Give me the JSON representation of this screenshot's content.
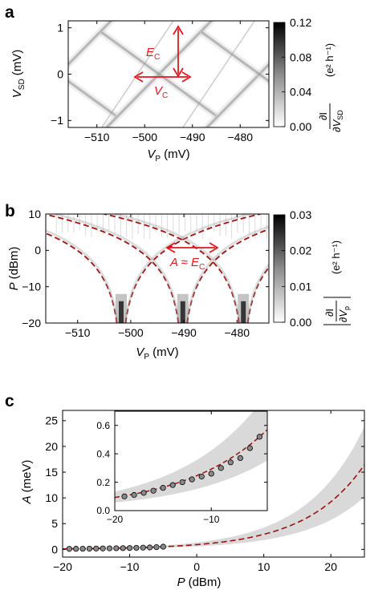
{
  "chart_data": [
    {
      "panel": "a",
      "type": "heatmap",
      "xlabel_main": "V",
      "xlabel_sub": "P",
      "xlabel_unit": "(mV)",
      "ylabel_main": "V",
      "ylabel_sub": "SD",
      "ylabel_unit": "(mV)",
      "xlim": [
        -516,
        -474
      ],
      "ylim": [
        -1.15,
        1.15
      ],
      "xticks": [
        -510,
        -500,
        -490,
        -480
      ],
      "yticks": [
        -1,
        0,
        1
      ],
      "colorbar": {
        "ticks": [
          "0.00",
          "0.04",
          "0.08",
          "0.12"
        ],
        "range": [
          0,
          0.12
        ],
        "label_num": "∂I",
        "label_den": "∂V",
        "label_den_sub": "SD",
        "unit": "(e² h⁻¹)"
      },
      "annotations": [
        {
          "main": "E",
          "sub": "C"
        },
        {
          "main": "V",
          "sub": "C"
        }
      ],
      "diamond_centers_mV": [
        -518,
        -497,
        -476
      ],
      "grid": false
    },
    {
      "panel": "b",
      "type": "heatmap",
      "xlabel_main": "V",
      "xlabel_sub": "P",
      "xlabel_unit": "(mV)",
      "ylabel_main": "P",
      "ylabel_unit": "(dBm)",
      "xlim": [
        -516,
        -474
      ],
      "ylim": [
        -20,
        10
      ],
      "xticks": [
        -510,
        -500,
        -490,
        -480
      ],
      "yticks": [
        -20,
        -10,
        0,
        10
      ],
      "colorbar": {
        "ticks": [
          "0.00",
          "0.01",
          "0.02",
          "0.03"
        ],
        "range": [
          0,
          0.03
        ],
        "label_num": "∂I",
        "label_den": "∂V",
        "label_den_sub": "p",
        "unit": "(e² h⁻¹)"
      },
      "annotation": {
        "main": "A ≈ E",
        "sub": "C"
      },
      "resonance_centers_mV": [
        -501.8,
        -490.2,
        -478.8
      ],
      "grid": false
    },
    {
      "panel": "c",
      "type": "scatter",
      "xlabel_main": "P",
      "xlabel_unit": "(dBm)",
      "ylabel_main": "A",
      "ylabel_unit": "(meV)",
      "xlim": [
        -20,
        25
      ],
      "ylim": [
        -1.5,
        27
      ],
      "xticks": [
        -20,
        -10,
        0,
        10,
        20
      ],
      "yticks": [
        0,
        5,
        10,
        15,
        20,
        25
      ],
      "series": [
        {
          "role": "measured",
          "x": [
            -19,
            -18,
            -17,
            -16,
            -15,
            -14,
            -13,
            -12,
            -11,
            -10,
            -9,
            -8,
            -7,
            -6,
            -5
          ],
          "y": [
            0.1,
            0.11,
            0.125,
            0.14,
            0.16,
            0.18,
            0.2,
            0.22,
            0.24,
            0.26,
            0.3,
            0.34,
            0.37,
            0.44,
            0.52
          ]
        },
        {
          "role": "model",
          "function": "A = 0.52 * 10^((P + 5)/20)"
        }
      ],
      "inset": {
        "xlim": [
          -20,
          -4.2
        ],
        "ylim": [
          0,
          0.7
        ],
        "xticks": [
          -20,
          -10
        ],
        "yticks": [
          "0.0",
          "0.2",
          "0.4",
          "0.6"
        ]
      },
      "grid": false
    }
  ],
  "panel_labels": [
    "a",
    "b",
    "c"
  ],
  "colors": {
    "annotation_red": "#e3161f",
    "curve_red": "#9b1010",
    "band_grey": "#d9d9d9",
    "marker_fill": "#8a8a8a"
  }
}
